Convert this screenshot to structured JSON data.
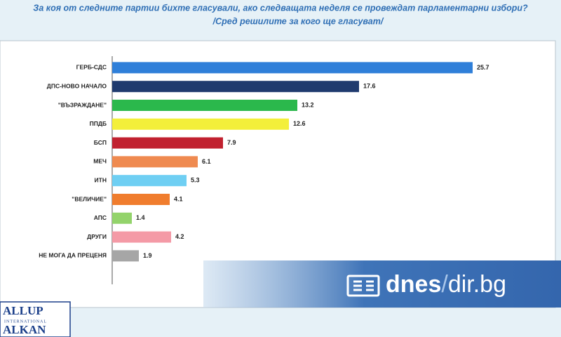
{
  "chart_data": {
    "type": "hbar",
    "title": "За коя от следните партии бихте  гласували,  ако следващата неделя се провеждат парламентарни избори?",
    "subtitle": "/Сред решилите за кого ще гласуват/",
    "categories": [
      "ГЕРБ-СДС",
      "ДПС-НОВО НАЧАЛО",
      "\"ВЪЗРАЖДАНЕ\"",
      "ППДБ",
      "БСП",
      "МЕЧ",
      "ИТН",
      "\"ВЕЛИЧИЕ\"",
      "АПС",
      "ДРУГИ",
      "НЕ МОГА ДА ПРЕЦЕНЯ"
    ],
    "values": [
      25.7,
      17.6,
      13.2,
      12.6,
      7.9,
      6.1,
      5.3,
      4.1,
      1.4,
      4.2,
      1.9
    ],
    "colors": [
      "#2f7fd9",
      "#1f3a6e",
      "#2bb84c",
      "#f3ef3a",
      "#c1212f",
      "#ef8a50",
      "#6fcff3",
      "#f07d2e",
      "#93d36b",
      "#f49aa6",
      "#a6a6a6"
    ],
    "xlim": [
      0,
      30
    ]
  },
  "overlay": {
    "brand": "dnes",
    "slash": "/",
    "domain": "dir.bg"
  },
  "logo": {
    "line1": "ALLUP",
    "line2": "INTERNATIONAL",
    "line3": "ALKAN"
  }
}
